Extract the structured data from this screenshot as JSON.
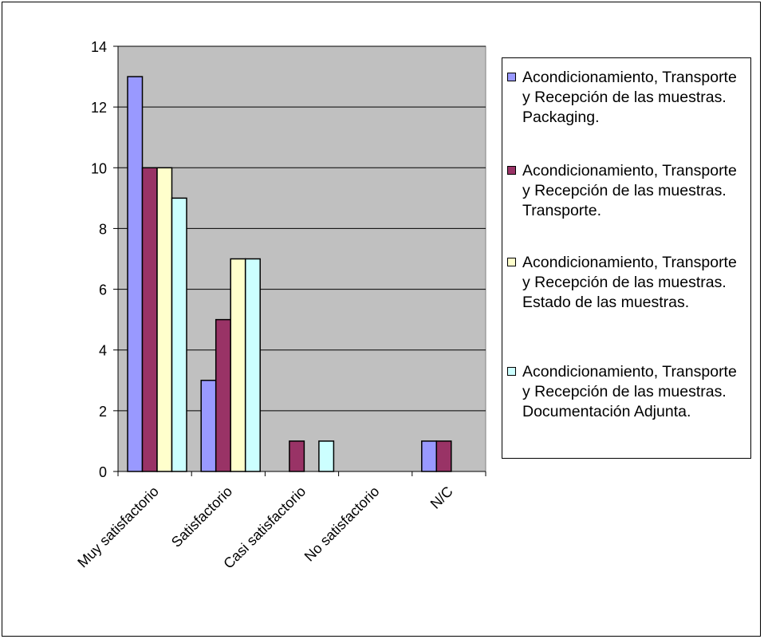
{
  "chart_data": {
    "type": "bar",
    "categories": [
      "Muy satisfactorio",
      "Satisfactorio",
      "Casi satisfactorio",
      "No satisfactorio",
      "N/C"
    ],
    "series": [
      {
        "name": "Acondicionamiento, Transporte y Recepción de las muestras. Packaging.",
        "color": "#9999FF",
        "values": [
          13,
          3,
          0,
          0,
          1
        ]
      },
      {
        "name": "Acondicionamiento, Transporte y Recepción de las muestras. Transporte.",
        "color": "#993366",
        "values": [
          10,
          5,
          1,
          0,
          1
        ]
      },
      {
        "name": "Acondicionamiento, Transporte y Recepción de las muestras. Estado de las muestras.",
        "color": "#FFFFCC",
        "values": [
          10,
          7,
          0,
          0,
          0
        ]
      },
      {
        "name": "Acondicionamiento, Transporte y Recepción de las muestras. Documentación Adjunta.",
        "color": "#CCFFFF",
        "values": [
          9,
          7,
          1,
          0,
          0
        ]
      }
    ],
    "ylim": [
      0,
      14
    ],
    "yticks": [
      "0",
      "2",
      "4",
      "6",
      "8",
      "10",
      "12",
      "14"
    ],
    "grid": true,
    "plot_background": "#C0C0C0",
    "legend_position": "right"
  }
}
